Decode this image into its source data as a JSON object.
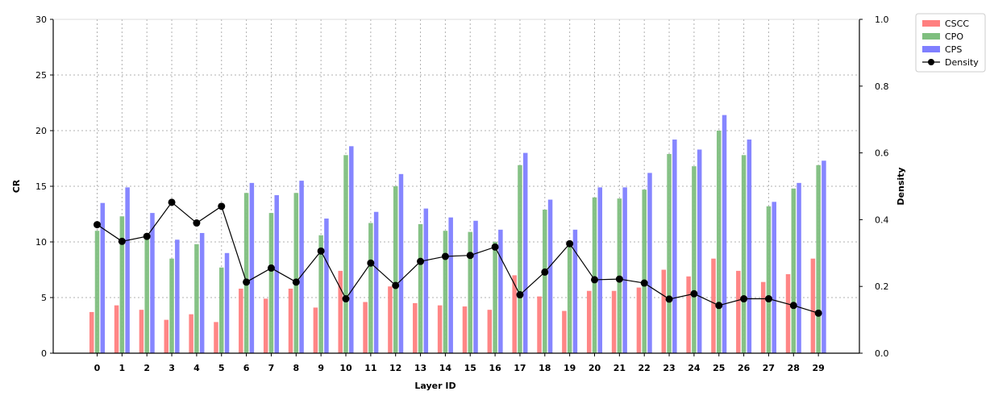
{
  "chart_data": {
    "type": "bar",
    "xlabel": "Layer ID",
    "ylabel": "CR",
    "y2label": "Density",
    "ylim": [
      0,
      30
    ],
    "y2lim": [
      0,
      1.0
    ],
    "yticks": [
      "0",
      "5",
      "10",
      "15",
      "20",
      "25",
      "30"
    ],
    "y2ticks": [
      "0.0",
      "0.2",
      "0.4",
      "0.6",
      "0.8",
      "1.0"
    ],
    "grid": true,
    "legend_position": "outside-top-right",
    "categories": [
      "0",
      "1",
      "2",
      "3",
      "4",
      "5",
      "6",
      "7",
      "8",
      "9",
      "10",
      "11",
      "12",
      "13",
      "14",
      "15",
      "16",
      "17",
      "18",
      "19",
      "20",
      "21",
      "22",
      "23",
      "24",
      "25",
      "26",
      "27",
      "28",
      "29"
    ],
    "series": [
      {
        "name": "CSCC",
        "type": "bar",
        "axis": "left",
        "color": "#ff7f7f",
        "values": [
          3.7,
          4.3,
          3.9,
          3.0,
          3.5,
          2.8,
          5.8,
          4.9,
          5.8,
          4.1,
          7.4,
          4.6,
          6.0,
          4.5,
          4.3,
          4.2,
          3.9,
          7.0,
          5.1,
          3.8,
          5.6,
          5.6,
          5.9,
          7.5,
          6.9,
          8.5,
          7.4,
          6.4,
          7.1,
          8.5
        ]
      },
      {
        "name": "CPO",
        "type": "bar",
        "axis": "left",
        "color": "#7fbf7f",
        "values": [
          11.0,
          12.3,
          10.5,
          8.5,
          9.8,
          7.7,
          14.4,
          12.6,
          14.4,
          10.6,
          17.8,
          11.7,
          15.0,
          11.6,
          11.0,
          10.9,
          10.0,
          16.9,
          12.9,
          10.0,
          14.0,
          13.9,
          14.7,
          17.9,
          16.8,
          20.0,
          17.8,
          13.2,
          14.8,
          16.9
        ]
      },
      {
        "name": "CPS",
        "type": "bar",
        "axis": "left",
        "color": "#7f7fff",
        "values": [
          13.5,
          14.9,
          12.6,
          10.2,
          10.8,
          9.0,
          15.3,
          14.2,
          15.5,
          12.1,
          18.6,
          12.7,
          16.1,
          13.0,
          12.2,
          11.9,
          11.1,
          18.0,
          13.8,
          11.1,
          14.9,
          14.9,
          16.2,
          19.2,
          18.3,
          21.4,
          19.2,
          13.6,
          15.3,
          17.3
        ]
      },
      {
        "name": "Density",
        "type": "line",
        "axis": "right",
        "color": "#000000",
        "values": [
          0.385,
          0.335,
          0.35,
          0.452,
          0.39,
          0.44,
          0.213,
          0.255,
          0.213,
          0.306,
          0.163,
          0.27,
          0.203,
          0.275,
          0.29,
          0.293,
          0.318,
          0.175,
          0.243,
          0.328,
          0.22,
          0.222,
          0.21,
          0.162,
          0.178,
          0.143,
          0.163,
          0.163,
          0.143,
          0.12
        ]
      }
    ]
  }
}
